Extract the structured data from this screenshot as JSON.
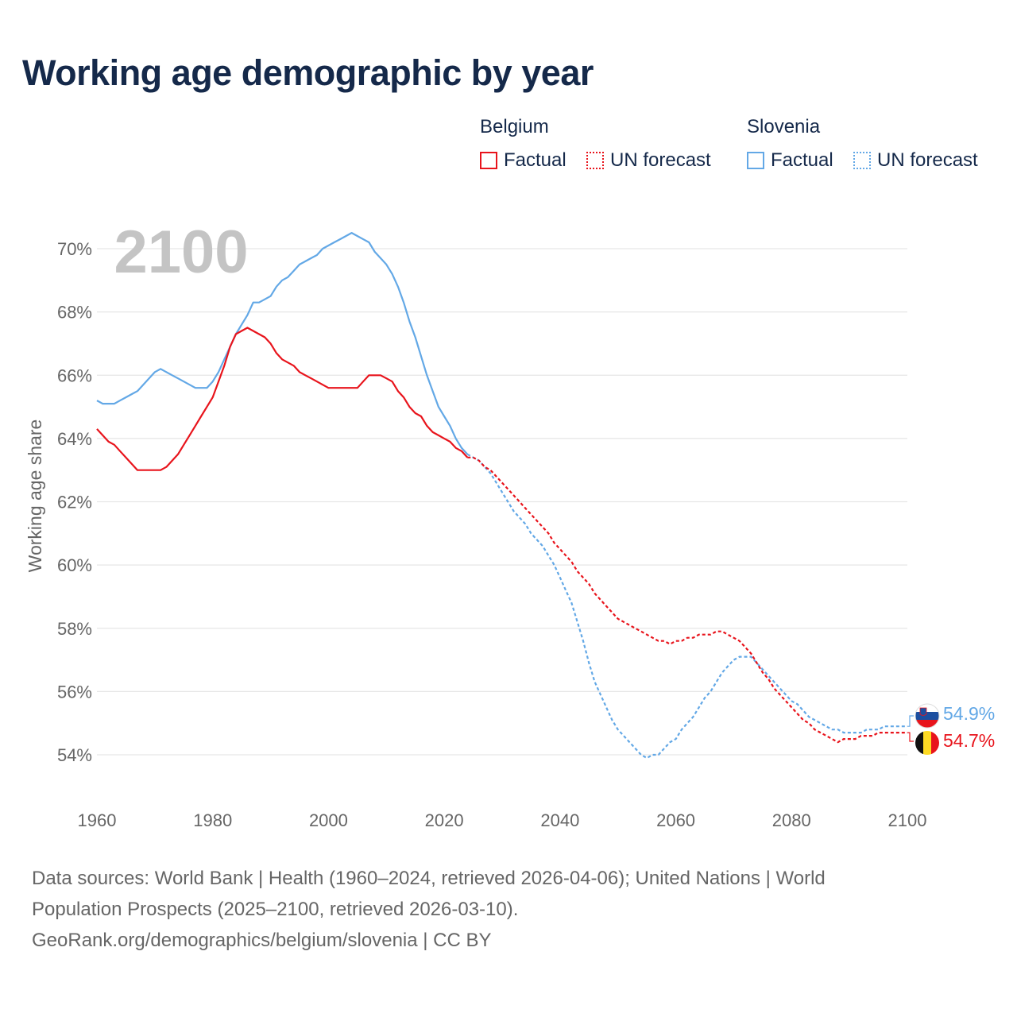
{
  "title": "Working age demographic by year",
  "legend": {
    "groups": [
      {
        "country": "Belgium",
        "color": "#e8141c",
        "factual_label": "Factual",
        "forecast_label": "UN forecast"
      },
      {
        "country": "Slovenia",
        "color": "#63a8e6",
        "factual_label": "Factual",
        "forecast_label": "UN forecast"
      }
    ]
  },
  "footer": {
    "line1": "Data sources: World Bank | Health (1960–2024, retrieved 2026-04-06); United Nations | World",
    "line2": "Population Prospects (2025–2100, retrieved 2026-03-10).",
    "line3": "GeoRank.org/demographics/belgium/slovenia | CC BY"
  },
  "chart_data": {
    "type": "line",
    "title": "Working age demographic by year",
    "year_overlay": "2100",
    "xlabel": "",
    "ylabel": "Working age share",
    "xlim": [
      1960,
      2100
    ],
    "ylim": [
      53,
      71
    ],
    "x_ticks": [
      1960,
      1980,
      2000,
      2020,
      2040,
      2060,
      2080,
      2100
    ],
    "y_ticks": [
      54,
      56,
      58,
      60,
      62,
      64,
      66,
      68,
      70
    ],
    "y_tick_labels": [
      "54%",
      "56%",
      "58%",
      "60%",
      "62%",
      "64%",
      "66%",
      "68%",
      "70%"
    ],
    "grid": true,
    "factual_end_year": 2024,
    "series": [
      {
        "name": "Belgium",
        "color": "#e8141c",
        "end_label": "54.7%",
        "points": [
          [
            1960,
            64.3
          ],
          [
            1961,
            64.1
          ],
          [
            1962,
            63.9
          ],
          [
            1963,
            63.8
          ],
          [
            1964,
            63.6
          ],
          [
            1965,
            63.4
          ],
          [
            1966,
            63.2
          ],
          [
            1967,
            63.0
          ],
          [
            1968,
            63.0
          ],
          [
            1969,
            63.0
          ],
          [
            1970,
            63.0
          ],
          [
            1971,
            63.0
          ],
          [
            1972,
            63.1
          ],
          [
            1973,
            63.3
          ],
          [
            1974,
            63.5
          ],
          [
            1975,
            63.8
          ],
          [
            1976,
            64.1
          ],
          [
            1977,
            64.4
          ],
          [
            1978,
            64.7
          ],
          [
            1979,
            65.0
          ],
          [
            1980,
            65.3
          ],
          [
            1981,
            65.8
          ],
          [
            1982,
            66.3
          ],
          [
            1983,
            66.9
          ],
          [
            1984,
            67.3
          ],
          [
            1985,
            67.4
          ],
          [
            1986,
            67.5
          ],
          [
            1987,
            67.4
          ],
          [
            1988,
            67.3
          ],
          [
            1989,
            67.2
          ],
          [
            1990,
            67.0
          ],
          [
            1991,
            66.7
          ],
          [
            1992,
            66.5
          ],
          [
            1993,
            66.4
          ],
          [
            1994,
            66.3
          ],
          [
            1995,
            66.1
          ],
          [
            1996,
            66.0
          ],
          [
            1997,
            65.9
          ],
          [
            1998,
            65.8
          ],
          [
            1999,
            65.7
          ],
          [
            2000,
            65.6
          ],
          [
            2001,
            65.6
          ],
          [
            2002,
            65.6
          ],
          [
            2003,
            65.6
          ],
          [
            2004,
            65.6
          ],
          [
            2005,
            65.6
          ],
          [
            2006,
            65.8
          ],
          [
            2007,
            66.0
          ],
          [
            2008,
            66.0
          ],
          [
            2009,
            66.0
          ],
          [
            2010,
            65.9
          ],
          [
            2011,
            65.8
          ],
          [
            2012,
            65.5
          ],
          [
            2013,
            65.3
          ],
          [
            2014,
            65.0
          ],
          [
            2015,
            64.8
          ],
          [
            2016,
            64.7
          ],
          [
            2017,
            64.4
          ],
          [
            2018,
            64.2
          ],
          [
            2019,
            64.1
          ],
          [
            2020,
            64.0
          ],
          [
            2021,
            63.9
          ],
          [
            2022,
            63.7
          ],
          [
            2023,
            63.6
          ],
          [
            2024,
            63.4
          ],
          [
            2025,
            63.4
          ],
          [
            2026,
            63.3
          ],
          [
            2027,
            63.1
          ],
          [
            2028,
            63.0
          ],
          [
            2029,
            62.8
          ],
          [
            2030,
            62.6
          ],
          [
            2031,
            62.4
          ],
          [
            2032,
            62.2
          ],
          [
            2033,
            62.0
          ],
          [
            2034,
            61.8
          ],
          [
            2035,
            61.6
          ],
          [
            2036,
            61.4
          ],
          [
            2037,
            61.2
          ],
          [
            2038,
            61.0
          ],
          [
            2039,
            60.7
          ],
          [
            2040,
            60.5
          ],
          [
            2041,
            60.3
          ],
          [
            2042,
            60.1
          ],
          [
            2043,
            59.8
          ],
          [
            2044,
            59.6
          ],
          [
            2045,
            59.4
          ],
          [
            2046,
            59.1
          ],
          [
            2047,
            58.9
          ],
          [
            2048,
            58.7
          ],
          [
            2049,
            58.5
          ],
          [
            2050,
            58.3
          ],
          [
            2051,
            58.2
          ],
          [
            2052,
            58.1
          ],
          [
            2053,
            58.0
          ],
          [
            2054,
            57.9
          ],
          [
            2055,
            57.8
          ],
          [
            2056,
            57.7
          ],
          [
            2057,
            57.6
          ],
          [
            2058,
            57.6
          ],
          [
            2059,
            57.5
          ],
          [
            2060,
            57.6
          ],
          [
            2061,
            57.6
          ],
          [
            2062,
            57.7
          ],
          [
            2063,
            57.7
          ],
          [
            2064,
            57.8
          ],
          [
            2065,
            57.8
          ],
          [
            2066,
            57.8
          ],
          [
            2067,
            57.9
          ],
          [
            2068,
            57.9
          ],
          [
            2069,
            57.8
          ],
          [
            2070,
            57.7
          ],
          [
            2071,
            57.6
          ],
          [
            2072,
            57.4
          ],
          [
            2073,
            57.2
          ],
          [
            2074,
            56.9
          ],
          [
            2075,
            56.6
          ],
          [
            2076,
            56.4
          ],
          [
            2077,
            56.1
          ],
          [
            2078,
            55.9
          ],
          [
            2079,
            55.7
          ],
          [
            2080,
            55.5
          ],
          [
            2081,
            55.3
          ],
          [
            2082,
            55.1
          ],
          [
            2083,
            55.0
          ],
          [
            2084,
            54.8
          ],
          [
            2085,
            54.7
          ],
          [
            2086,
            54.6
          ],
          [
            2087,
            54.5
          ],
          [
            2088,
            54.4
          ],
          [
            2089,
            54.5
          ],
          [
            2090,
            54.5
          ],
          [
            2091,
            54.5
          ],
          [
            2092,
            54.6
          ],
          [
            2093,
            54.6
          ],
          [
            2094,
            54.6
          ],
          [
            2095,
            54.7
          ],
          [
            2096,
            54.7
          ],
          [
            2097,
            54.7
          ],
          [
            2098,
            54.7
          ],
          [
            2099,
            54.7
          ],
          [
            2100,
            54.7
          ]
        ]
      },
      {
        "name": "Slovenia",
        "color": "#63a8e6",
        "end_label": "54.9%",
        "points": [
          [
            1960,
            65.2
          ],
          [
            1961,
            65.1
          ],
          [
            1962,
            65.1
          ],
          [
            1963,
            65.1
          ],
          [
            1964,
            65.2
          ],
          [
            1965,
            65.3
          ],
          [
            1966,
            65.4
          ],
          [
            1967,
            65.5
          ],
          [
            1968,
            65.7
          ],
          [
            1969,
            65.9
          ],
          [
            1970,
            66.1
          ],
          [
            1971,
            66.2
          ],
          [
            1972,
            66.1
          ],
          [
            1973,
            66.0
          ],
          [
            1974,
            65.9
          ],
          [
            1975,
            65.8
          ],
          [
            1976,
            65.7
          ],
          [
            1977,
            65.6
          ],
          [
            1978,
            65.6
          ],
          [
            1979,
            65.6
          ],
          [
            1980,
            65.8
          ],
          [
            1981,
            66.1
          ],
          [
            1982,
            66.5
          ],
          [
            1983,
            66.9
          ],
          [
            1984,
            67.3
          ],
          [
            1985,
            67.6
          ],
          [
            1986,
            67.9
          ],
          [
            1987,
            68.3
          ],
          [
            1988,
            68.3
          ],
          [
            1989,
            68.4
          ],
          [
            1990,
            68.5
          ],
          [
            1991,
            68.8
          ],
          [
            1992,
            69.0
          ],
          [
            1993,
            69.1
          ],
          [
            1994,
            69.3
          ],
          [
            1995,
            69.5
          ],
          [
            1996,
            69.6
          ],
          [
            1997,
            69.7
          ],
          [
            1998,
            69.8
          ],
          [
            1999,
            70.0
          ],
          [
            2000,
            70.1
          ],
          [
            2001,
            70.2
          ],
          [
            2002,
            70.3
          ],
          [
            2003,
            70.4
          ],
          [
            2004,
            70.5
          ],
          [
            2005,
            70.4
          ],
          [
            2006,
            70.3
          ],
          [
            2007,
            70.2
          ],
          [
            2008,
            69.9
          ],
          [
            2009,
            69.7
          ],
          [
            2010,
            69.5
          ],
          [
            2011,
            69.2
          ],
          [
            2012,
            68.8
          ],
          [
            2013,
            68.3
          ],
          [
            2014,
            67.7
          ],
          [
            2015,
            67.2
          ],
          [
            2016,
            66.6
          ],
          [
            2017,
            66.0
          ],
          [
            2018,
            65.5
          ],
          [
            2019,
            65.0
          ],
          [
            2020,
            64.7
          ],
          [
            2021,
            64.4
          ],
          [
            2022,
            64.0
          ],
          [
            2023,
            63.7
          ],
          [
            2024,
            63.5
          ],
          [
            2025,
            63.4
          ],
          [
            2026,
            63.3
          ],
          [
            2027,
            63.1
          ],
          [
            2028,
            62.9
          ],
          [
            2029,
            62.6
          ],
          [
            2030,
            62.3
          ],
          [
            2031,
            62.0
          ],
          [
            2032,
            61.7
          ],
          [
            2033,
            61.5
          ],
          [
            2034,
            61.3
          ],
          [
            2035,
            61.0
          ],
          [
            2036,
            60.8
          ],
          [
            2037,
            60.6
          ],
          [
            2038,
            60.3
          ],
          [
            2039,
            60.0
          ],
          [
            2040,
            59.6
          ],
          [
            2041,
            59.2
          ],
          [
            2042,
            58.8
          ],
          [
            2043,
            58.2
          ],
          [
            2044,
            57.6
          ],
          [
            2045,
            56.9
          ],
          [
            2046,
            56.3
          ],
          [
            2047,
            55.9
          ],
          [
            2048,
            55.5
          ],
          [
            2049,
            55.1
          ],
          [
            2050,
            54.8
          ],
          [
            2051,
            54.6
          ],
          [
            2052,
            54.4
          ],
          [
            2053,
            54.2
          ],
          [
            2054,
            54.0
          ],
          [
            2055,
            53.9
          ],
          [
            2056,
            54.0
          ],
          [
            2057,
            54.0
          ],
          [
            2058,
            54.2
          ],
          [
            2059,
            54.4
          ],
          [
            2060,
            54.5
          ],
          [
            2061,
            54.8
          ],
          [
            2062,
            55.0
          ],
          [
            2063,
            55.2
          ],
          [
            2064,
            55.5
          ],
          [
            2065,
            55.8
          ],
          [
            2066,
            56.0
          ],
          [
            2067,
            56.3
          ],
          [
            2068,
            56.6
          ],
          [
            2069,
            56.8
          ],
          [
            2070,
            57.0
          ],
          [
            2071,
            57.1
          ],
          [
            2072,
            57.1
          ],
          [
            2073,
            57.1
          ],
          [
            2074,
            56.9
          ],
          [
            2075,
            56.7
          ],
          [
            2076,
            56.5
          ],
          [
            2077,
            56.3
          ],
          [
            2078,
            56.1
          ],
          [
            2079,
            55.9
          ],
          [
            2080,
            55.7
          ],
          [
            2081,
            55.6
          ],
          [
            2082,
            55.4
          ],
          [
            2083,
            55.2
          ],
          [
            2084,
            55.1
          ],
          [
            2085,
            55.0
          ],
          [
            2086,
            54.9
          ],
          [
            2087,
            54.8
          ],
          [
            2088,
            54.8
          ],
          [
            2089,
            54.7
          ],
          [
            2090,
            54.7
          ],
          [
            2091,
            54.7
          ],
          [
            2092,
            54.7
          ],
          [
            2093,
            54.8
          ],
          [
            2094,
            54.8
          ],
          [
            2095,
            54.8
          ],
          [
            2096,
            54.9
          ],
          [
            2097,
            54.9
          ],
          [
            2098,
            54.9
          ],
          [
            2099,
            54.9
          ],
          [
            2100,
            54.9
          ]
        ]
      }
    ]
  }
}
